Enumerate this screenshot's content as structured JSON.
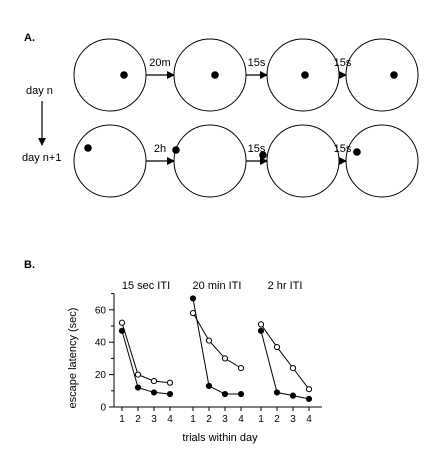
{
  "panel_a": {
    "label": "A.",
    "row_labels": [
      "day n",
      "day n+1"
    ],
    "rows": [
      {
        "intervals": [
          "20m",
          "15s",
          "15s"
        ]
      },
      {
        "intervals": [
          "2h",
          "15s",
          "15s"
        ]
      }
    ]
  },
  "chart_data": {
    "type": "line",
    "panel_label": "B.",
    "ylabel": "escape latency (sec)",
    "xlabel": "trials within day",
    "ylim": [
      0,
      70
    ],
    "yticks": [
      0,
      20,
      40,
      60
    ],
    "x": [
      1,
      2,
      3,
      4
    ],
    "groups": [
      {
        "title": "15 sec ITI",
        "series": [
          {
            "marker": "open",
            "values": [
              52,
              20,
              16,
              15
            ]
          },
          {
            "marker": "filled",
            "values": [
              47,
              12,
              9,
              8
            ]
          }
        ]
      },
      {
        "title": "20 min ITI",
        "series": [
          {
            "marker": "open",
            "values": [
              58,
              41,
              30,
              24
            ]
          },
          {
            "marker": "filled",
            "values": [
              67,
              13,
              8,
              8
            ]
          }
        ]
      },
      {
        "title": "2 hr ITI",
        "series": [
          {
            "marker": "open",
            "values": [
              51,
              37,
              24,
              11
            ]
          },
          {
            "marker": "filled",
            "values": [
              47,
              9,
              7,
              5
            ]
          }
        ]
      }
    ]
  }
}
